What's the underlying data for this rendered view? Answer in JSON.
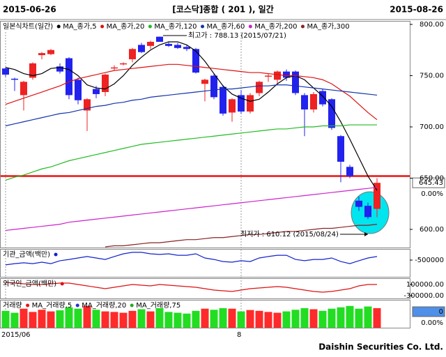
{
  "header": {
    "start_date": "2015-06-26",
    "title": "[코스닥]종합 ( 201 ), 일간",
    "end_date": "2015-08-26"
  },
  "footer": "Daishin Securities Co. Ltd.",
  "chart_data": [
    {
      "type": "candlestick",
      "title": "일본식차트(일간)",
      "categories": [
        "2015/06",
        null,
        null,
        null,
        null,
        null,
        null,
        null,
        null,
        null,
        null,
        null,
        null,
        null,
        null,
        null,
        null,
        null,
        null,
        null,
        null,
        null,
        null,
        null,
        null,
        null,
        "8",
        null,
        null,
        null,
        null,
        null,
        null,
        null,
        null,
        null,
        null,
        null,
        null,
        null,
        null,
        null
      ],
      "open": [
        757,
        747,
        731,
        748,
        770,
        771,
        759,
        767,
        746,
        716,
        737,
        734,
        757,
        761,
        766,
        780,
        779,
        788,
        781,
        780,
        778,
        776,
        742,
        750,
        739,
        714,
        731,
        715,
        733,
        749,
        746,
        754,
        754,
        731,
        717,
        735,
        727,
        691,
        661,
        628,
        623,
        620
      ],
      "high": [
        758,
        748,
        745,
        763,
        773,
        776,
        762,
        768,
        748,
        728,
        740,
        752,
        760,
        763,
        777,
        782,
        784,
        788.13,
        783,
        782,
        780,
        777,
        747,
        752,
        741,
        728,
        736,
        733,
        745,
        752,
        755,
        756,
        755,
        733,
        734,
        737,
        728,
        692,
        663,
        632,
        626,
        650
      ],
      "low": [
        749,
        735,
        716,
        746,
        766,
        770,
        752,
        727,
        722,
        696,
        728,
        730,
        755,
        760,
        763,
        772,
        776,
        783,
        778,
        776,
        774,
        752,
        725,
        727,
        711,
        705,
        713,
        713,
        730,
        744,
        742,
        745,
        731,
        691,
        714,
        720,
        697,
        646,
        650,
        618,
        610.12,
        612
      ],
      "close": [
        751,
        746,
        744,
        762,
        772,
        775,
        754,
        731,
        726,
        727,
        732,
        751,
        758,
        762,
        776,
        773,
        783,
        783,
        779,
        777,
        776,
        753,
        746,
        729,
        713,
        727,
        715,
        731,
        744,
        750,
        754,
        748,
        733,
        717,
        732,
        722,
        699,
        666,
        652,
        622,
        612,
        645.43
      ],
      "up_color": "#ee2222",
      "down_color": "#2222ee",
      "series": [
        {
          "name": "MA_종가,5",
          "color": "#000000",
          "values": [
            758,
            756,
            752,
            750,
            752,
            757,
            758,
            756,
            750,
            741,
            738,
            737,
            742,
            750,
            760,
            768,
            775,
            780,
            783,
            783,
            780,
            774,
            764,
            752,
            740,
            732,
            728,
            725,
            727,
            734,
            742,
            748,
            750,
            746,
            738,
            730,
            720,
            705,
            688,
            670,
            652,
            638
          ]
        },
        {
          "name": "MA_종가,20",
          "color": "#dd1111",
          "values": [
            722,
            725,
            728,
            731,
            734,
            737,
            740,
            744,
            747,
            749,
            751,
            753,
            755,
            756,
            757,
            758,
            759,
            760,
            761,
            761,
            760,
            759,
            758,
            757,
            756,
            755,
            754,
            753,
            753,
            752,
            751,
            750,
            750,
            749,
            748,
            746,
            742,
            736,
            730,
            722,
            714,
            707
          ]
        },
        {
          "name": "MA_종가,120",
          "color": "#22bb22",
          "values": [
            648,
            651,
            653,
            656,
            659,
            661,
            664,
            667,
            669,
            671,
            673,
            675,
            677,
            679,
            681,
            683,
            684,
            685,
            686,
            687,
            688,
            689,
            690,
            691,
            692,
            693,
            694,
            695,
            696,
            697,
            698,
            698,
            699,
            700,
            700,
            701,
            701,
            701,
            702,
            702,
            702,
            702
          ]
        },
        {
          "name": "MA_종가,60",
          "color": "#1133aa",
          "values": [
            701,
            703,
            705,
            707,
            709,
            711,
            713,
            714,
            716,
            718,
            720,
            721,
            723,
            724,
            726,
            727,
            729,
            730,
            731,
            732,
            733,
            734,
            735,
            736,
            737,
            737,
            738,
            739,
            740,
            740,
            741,
            741,
            740,
            739,
            738,
            737,
            736,
            735,
            734,
            733,
            732,
            731
          ]
        },
        {
          "name": "MA_종가,200",
          "color": "#cc22cc",
          "values": [
            599,
            600,
            601,
            602,
            603,
            604,
            605,
            607,
            608,
            609,
            610,
            611,
            612,
            613,
            614,
            615,
            616,
            617,
            618,
            619,
            620,
            621,
            622,
            623,
            624,
            625,
            626,
            627,
            628,
            629,
            630,
            631,
            632,
            633,
            634,
            635,
            636,
            637,
            638,
            639,
            640,
            641
          ]
        },
        {
          "name": "MA_종가,300",
          "color": "#882222",
          "values": [
            null,
            null,
            null,
            null,
            null,
            null,
            null,
            null,
            null,
            null,
            null,
            583,
            584,
            584,
            585,
            586,
            587,
            587,
            588,
            589,
            590,
            590,
            591,
            592,
            592,
            593,
            594,
            595,
            595,
            596,
            597,
            598,
            598,
            599,
            600,
            601,
            601,
            602,
            603,
            604,
            604,
            605
          ]
        }
      ],
      "ylim": [
        582.3,
        803.4
      ],
      "yticks": [
        {
          "value": 800,
          "label": "800.00"
        },
        {
          "value": 750,
          "label": "750.00"
        },
        {
          "value": 700,
          "label": "700.00"
        },
        {
          "value": 650,
          "label": "650.00"
        },
        {
          "value": 600,
          "label": "600.00"
        }
      ],
      "hline": {
        "value": 652,
        "color": "#ee1111"
      },
      "annotations": [
        {
          "text": "최고가 : 788.13 (2015/07/21)",
          "color": "#ee1111"
        },
        {
          "text": "최저가 : 610.12 (2015/08/24)",
          "color": "#222288"
        }
      ],
      "last_label": "645.43",
      "change_label": "0.00%"
    },
    {
      "type": "line",
      "title": "기관_금액(백만)",
      "color": "#1122cc",
      "values": [
        -730000,
        -670000,
        -630000,
        -670000,
        -600000,
        -670000,
        -530000,
        -470000,
        -400000,
        -330000,
        -400000,
        -470000,
        -330000,
        -200000,
        -130000,
        -130000,
        -200000,
        -230000,
        -200000,
        -270000,
        -270000,
        -200000,
        -400000,
        -470000,
        -570000,
        -600000,
        -530000,
        -570000,
        -400000,
        -330000,
        -270000,
        -270000,
        -470000,
        -530000,
        -470000,
        -470000,
        -400000,
        -570000,
        -670000,
        -530000,
        -400000,
        -330000
      ],
      "ylim": [
        -1300000,
        0
      ],
      "yticks": [
        -500000
      ]
    },
    {
      "type": "line",
      "title": "외국인_금액(백만)",
      "color": "#dd1111",
      "values": [
        175000,
        150000,
        125000,
        100000,
        100000,
        125000,
        150000,
        150000,
        100000,
        50000,
        0,
        -50000,
        0,
        50000,
        100000,
        75000,
        50000,
        100000,
        75000,
        50000,
        25000,
        0,
        -50000,
        -100000,
        -125000,
        -150000,
        -100000,
        -50000,
        -25000,
        0,
        25000,
        0,
        -50000,
        -100000,
        -150000,
        -175000,
        -150000,
        -100000,
        -50000,
        50000,
        100000,
        100000
      ],
      "ylim": [
        -400000,
        300000
      ],
      "yticks": [
        {
          "value": 100000,
          "label": "100000.00"
        },
        {
          "value": -300000,
          "label": "-300000.00"
        }
      ]
    },
    {
      "type": "bar",
      "title": "거래량",
      "up_color": "#ff2a2a",
      "down_color": "#22dd22",
      "values": [
        62,
        55,
        70,
        58,
        66,
        60,
        64,
        75,
        70,
        80,
        66,
        60,
        58,
        55,
        62,
        68,
        60,
        72,
        58,
        55,
        52,
        62,
        70,
        66,
        72,
        70,
        60,
        65,
        62,
        58,
        55,
        60,
        66,
        72,
        68,
        62,
        70,
        75,
        80,
        70,
        78,
        72
      ],
      "ylim": [
        0,
        100
      ],
      "legend": [
        {
          "name": "MA_거래량,5",
          "color": "#ee1111"
        },
        {
          "name": "MA_거래량,20",
          "color": "#2233cc"
        },
        {
          "name": "MA_거래량,75",
          "color": "#22aa22"
        }
      ],
      "last_label": "0",
      "change_label": "0.00%"
    }
  ]
}
